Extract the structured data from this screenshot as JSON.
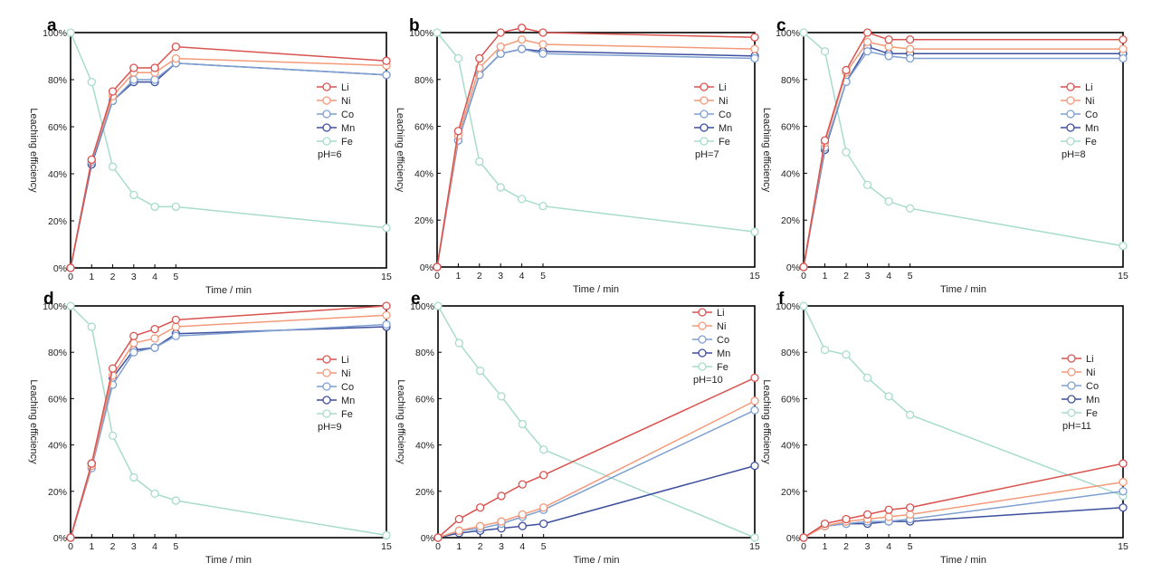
{
  "figure": {
    "x_label": "Time / min",
    "y_label": "Leaching efficiency"
  },
  "styles": {
    "Li": "#d9534f",
    "Ni": "#f39a7a",
    "Co": "#7fa0d0",
    "Mn": "#3d4f9e",
    "Fe": "#a8dccb"
  },
  "chart_data": [
    {
      "panel": "a",
      "type": "line",
      "ph_label": "pH=6",
      "x_ticks": [
        0,
        1,
        2,
        3,
        4,
        5,
        15
      ],
      "y_ticks": [
        "0%",
        "20%",
        "40%",
        "60%",
        "80%",
        "100%"
      ],
      "xlim": [
        0,
        15
      ],
      "ylim": [
        0,
        100
      ],
      "legend_position": "right",
      "x": [
        0,
        1,
        2,
        3,
        4,
        5,
        15
      ],
      "series": [
        {
          "name": "Li",
          "values": [
            0,
            46,
            75,
            85,
            85,
            94,
            88
          ]
        },
        {
          "name": "Ni",
          "values": [
            0,
            46,
            73,
            83,
            83,
            89,
            86
          ]
        },
        {
          "name": "Co",
          "values": [
            0,
            45,
            71,
            80,
            80,
            87,
            82
          ]
        },
        {
          "name": "Mn",
          "values": [
            0,
            44,
            71,
            79,
            79,
            87,
            82
          ]
        },
        {
          "name": "Fe",
          "values": [
            100,
            79,
            43,
            31,
            26,
            26,
            17
          ]
        }
      ]
    },
    {
      "panel": "b",
      "type": "line",
      "ph_label": "pH=7",
      "x_ticks": [
        0,
        1,
        2,
        3,
        4,
        5,
        15
      ],
      "y_ticks": [
        "0%",
        "20%",
        "40%",
        "60%",
        "80%",
        "100%"
      ],
      "xlim": [
        0,
        15
      ],
      "ylim": [
        0,
        100
      ],
      "legend_position": "right",
      "x": [
        0,
        1,
        2,
        3,
        4,
        5,
        15
      ],
      "series": [
        {
          "name": "Li",
          "values": [
            0,
            58,
            89,
            100,
            102,
            100,
            98
          ]
        },
        {
          "name": "Ni",
          "values": [
            0,
            56,
            85,
            94,
            97,
            95,
            93
          ]
        },
        {
          "name": "Co",
          "values": [
            0,
            54,
            82,
            91,
            93,
            91,
            89
          ]
        },
        {
          "name": "Mn",
          "values": [
            0,
            54,
            82,
            91,
            93,
            92,
            90
          ]
        },
        {
          "name": "Fe",
          "values": [
            100,
            89,
            45,
            34,
            29,
            26,
            15
          ]
        }
      ]
    },
    {
      "panel": "c",
      "type": "line",
      "ph_label": "pH=8",
      "x_ticks": [
        0,
        1,
        2,
        3,
        4,
        5,
        15
      ],
      "y_ticks": [
        "0%",
        "20%",
        "40%",
        "60%",
        "80%",
        "100%"
      ],
      "xlim": [
        0,
        15
      ],
      "ylim": [
        0,
        100
      ],
      "legend_position": "right",
      "x": [
        0,
        1,
        2,
        3,
        4,
        5,
        15
      ],
      "series": [
        {
          "name": "Li",
          "values": [
            0,
            54,
            84,
            100,
            97,
            97,
            97
          ]
        },
        {
          "name": "Ni",
          "values": [
            0,
            53,
            83,
            96,
            94,
            93,
            93
          ]
        },
        {
          "name": "Co",
          "values": [
            0,
            51,
            79,
            92,
            90,
            89,
            89
          ]
        },
        {
          "name": "Mn",
          "values": [
            0,
            50,
            79,
            94,
            91,
            91,
            91
          ]
        },
        {
          "name": "Fe",
          "values": [
            100,
            92,
            49,
            35,
            28,
            25,
            9
          ]
        }
      ]
    },
    {
      "panel": "d",
      "type": "line",
      "ph_label": "pH=9",
      "x_ticks": [
        0,
        1,
        2,
        3,
        4,
        5,
        15
      ],
      "y_ticks": [
        "0%",
        "20%",
        "40%",
        "60%",
        "80%",
        "100%"
      ],
      "xlim": [
        0,
        15
      ],
      "ylim": [
        0,
        100
      ],
      "legend_position": "right",
      "x": [
        0,
        1,
        2,
        3,
        4,
        5,
        15
      ],
      "series": [
        {
          "name": "Li",
          "values": [
            0,
            32,
            73,
            87,
            90,
            94,
            100
          ]
        },
        {
          "name": "Ni",
          "values": [
            0,
            31,
            70,
            84,
            86,
            91,
            96
          ]
        },
        {
          "name": "Co",
          "values": [
            0,
            30,
            66,
            80,
            82,
            87,
            92
          ]
        },
        {
          "name": "Mn",
          "values": [
            0,
            32,
            69,
            81,
            82,
            88,
            91
          ]
        },
        {
          "name": "Fe",
          "values": [
            100,
            91,
            44,
            26,
            19,
            16,
            1
          ]
        }
      ]
    },
    {
      "panel": "e",
      "type": "line",
      "ph_label": "pH=10",
      "x_ticks": [
        0,
        1,
        2,
        3,
        4,
        5,
        15
      ],
      "y_ticks": [
        "0%",
        "20%",
        "40%",
        "60%",
        "80%",
        "100%"
      ],
      "xlim": [
        0,
        15
      ],
      "ylim": [
        0,
        100
      ],
      "legend_position": "top-right",
      "x": [
        0,
        1,
        2,
        3,
        4,
        5,
        15
      ],
      "series": [
        {
          "name": "Li",
          "values": [
            0,
            8,
            13,
            18,
            23,
            27,
            69
          ]
        },
        {
          "name": "Ni",
          "values": [
            0,
            3,
            5,
            7,
            10,
            13,
            59
          ]
        },
        {
          "name": "Co",
          "values": [
            0,
            3,
            4,
            6,
            9,
            12,
            55
          ]
        },
        {
          "name": "Mn",
          "values": [
            0,
            2,
            3,
            4,
            5,
            6,
            31
          ]
        },
        {
          "name": "Fe",
          "values": [
            100,
            84,
            72,
            61,
            49,
            38,
            0
          ]
        }
      ]
    },
    {
      "panel": "f",
      "type": "line",
      "ph_label": "pH=11",
      "x_ticks": [
        0,
        1,
        2,
        3,
        4,
        5,
        15
      ],
      "y_ticks": [
        "0%",
        "20%",
        "40%",
        "60%",
        "80%",
        "100%"
      ],
      "xlim": [
        0,
        15
      ],
      "ylim": [
        0,
        100
      ],
      "legend_position": "right",
      "x": [
        0,
        1,
        2,
        3,
        4,
        5,
        15
      ],
      "series": [
        {
          "name": "Li",
          "values": [
            0,
            6,
            8,
            10,
            12,
            13,
            32
          ]
        },
        {
          "name": "Ni",
          "values": [
            0,
            5,
            7,
            8,
            9,
            10,
            24
          ]
        },
        {
          "name": "Co",
          "values": [
            0,
            5,
            6,
            7,
            7,
            8,
            20
          ]
        },
        {
          "name": "Mn",
          "values": [
            0,
            5,
            6,
            6,
            7,
            7,
            13
          ]
        },
        {
          "name": "Fe",
          "values": [
            100,
            81,
            79,
            69,
            61,
            53,
            18
          ]
        }
      ]
    }
  ]
}
